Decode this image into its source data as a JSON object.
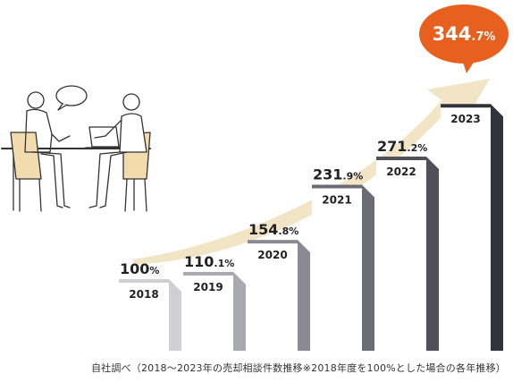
{
  "chart_data": {
    "type": "bar",
    "categories": [
      "2018",
      "2019",
      "2020",
      "2021",
      "2022",
      "2023"
    ],
    "values": [
      100,
      110.1,
      154.8,
      231.9,
      271.2,
      344.7
    ],
    "value_labels": [
      {
        "main": "100",
        "dec": "%"
      },
      {
        "main": "110",
        "dec": ".1%"
      },
      {
        "main": "154",
        "dec": ".8%"
      },
      {
        "main": "231",
        "dec": ".9%"
      },
      {
        "main": "271",
        "dec": ".2%"
      },
      {
        "main": "344",
        "dec": ".7%"
      }
    ],
    "ylim": [
      0,
      400
    ],
    "grid": false,
    "legend": "none",
    "colors": [
      "#cfcfd4",
      "#a9a9b2",
      "#8a8a94",
      "#6b6b75",
      "#4f4f59",
      "#33333d"
    ],
    "highlight_color": "#e8601e",
    "trend_arrow_color": "#f2e5c6"
  },
  "illustration": {
    "icon": "meeting-illustration-icon"
  },
  "note": "自社調べ（2018〜2023年の売却相談件数推移※2018年度を100%とした場合の各年推移）"
}
